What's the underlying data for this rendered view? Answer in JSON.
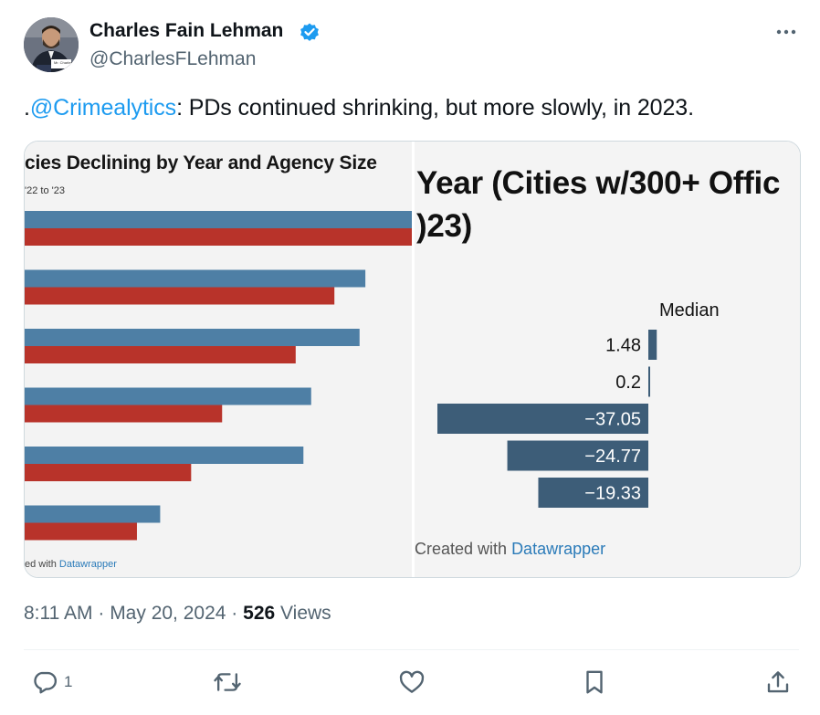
{
  "author": {
    "name": "Charles Fain Lehman",
    "handle": "@CharlesFLehman",
    "avatar_badge": "Mr. Charles",
    "verified_icon": "verified-badge-icon"
  },
  "tweet": {
    "text_prefix": ".",
    "mention": "@Crimealytics",
    "text_rest": ": PDs continued shrinking, but more slowly, in 2023."
  },
  "media": {
    "left_panel": {
      "title": "cies Declining by Year and Agency Size",
      "subtitle": "'22 to '23",
      "credit_prefix": "ed with ",
      "credit_brand": "Datawrapper",
      "colors": {
        "series_a": "#4e7fa5",
        "series_b": "#b8332a"
      }
    },
    "right_panel": {
      "title_line1": "Year (Cities w/300+ Offic",
      "title_line2": ")23)",
      "column_header": "Median",
      "credit_prefix": "Created with ",
      "credit_brand": "Datawrapper",
      "bar_color": "#3d5d78"
    }
  },
  "chart_data": [
    {
      "type": "bar",
      "orientation": "horizontal",
      "title": "cies Declining by Year and Agency Size",
      "subtitle": "'22 to '23",
      "categories": [
        "",
        "",
        "",
        "",
        "",
        ""
      ],
      "series": [
        {
          "values": [
            100,
            88,
            86.5,
            74,
            72,
            35
          ]
        },
        {
          "values": [
            100,
            80,
            70,
            51,
            43,
            29
          ]
        }
      ],
      "xlim": [
        0,
        100
      ],
      "grid": false
    },
    {
      "type": "bar",
      "orientation": "horizontal",
      "title": "Year (Cities w/300+ Offic )23)",
      "column_header": "Median",
      "values": [
        1.48,
        0.2,
        -37.05,
        -24.77,
        -19.33
      ],
      "labels": [
        "1.48",
        "0.2",
        "−37.05",
        "−24.77",
        "−19.33"
      ],
      "grid": false
    }
  ],
  "meta": {
    "time": "8:11 AM",
    "date": "May 20, 2024",
    "dot": "·",
    "views_count": "526",
    "views_label": "Views"
  },
  "actions": {
    "reply_count": "1",
    "reply_icon": "reply-icon",
    "retweet_icon": "retweet-icon",
    "like_icon": "like-icon",
    "bookmark_icon": "bookmark-icon",
    "share_icon": "share-icon",
    "more_icon": "more-icon"
  }
}
